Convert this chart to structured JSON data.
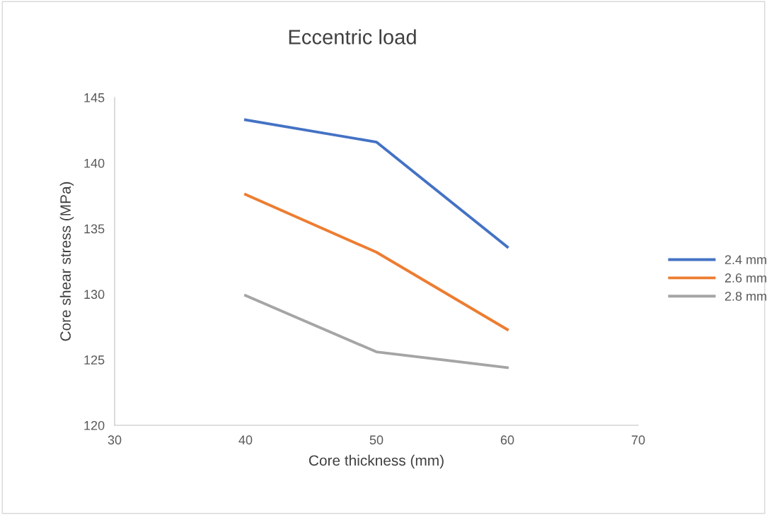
{
  "chart_data": {
    "type": "line",
    "title": "Eccentric load",
    "xlabel": "Core thickness (mm)",
    "ylabel": "Core shear stress (MPa)",
    "x": [
      40,
      50,
      60
    ],
    "series": [
      {
        "name": "2.4 mm",
        "color": "#4472c4",
        "values": [
          143.3,
          141.6,
          133.6
        ]
      },
      {
        "name": "2.6 mm",
        "color": "#ed7d31",
        "values": [
          137.6,
          133.2,
          127.3
        ]
      },
      {
        "name": "2.8 mm",
        "color": "#a5a5a5",
        "values": [
          129.9,
          125.6,
          124.4
        ]
      }
    ],
    "xlim": [
      30,
      70
    ],
    "xticks": [
      30,
      40,
      50,
      60,
      70
    ],
    "ylim": [
      120,
      145
    ],
    "yticks": [
      120,
      125,
      130,
      135,
      140,
      145
    ],
    "grid": false,
    "legend": "right",
    "marker": "none",
    "line_style": "solid"
  }
}
